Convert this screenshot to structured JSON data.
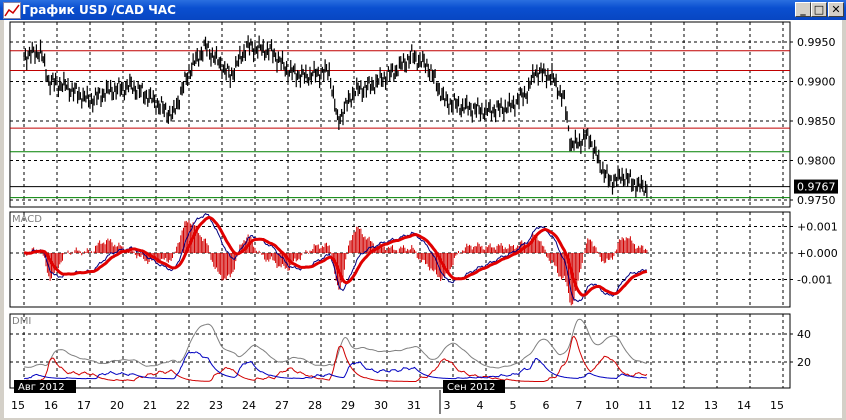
{
  "window": {
    "title": "График USD /CAD  ЧАС",
    "minimize_icon": "minimize-icon",
    "maximize_icon": "maximize-icon",
    "close_icon": "close-icon"
  },
  "colors": {
    "candles": "#000000",
    "resistance": "#c00000",
    "support": "#008000",
    "macd_signal": "#e00000",
    "macd_line": "#000080",
    "dmi_adx": "#808080",
    "dmi_plus": "#0000c0",
    "dmi_minus": "#d00000"
  },
  "chart_data": [
    {
      "type": "bar",
      "name": "price",
      "ylim": [
        0.9745,
        0.997
      ],
      "yticks": [
        "0.9950",
        "0.9900",
        "0.9850",
        "0.9800",
        "0.9750"
      ],
      "current_price": "0.9767",
      "horizontal_lines": [
        {
          "price": 0.9939,
          "color": "red"
        },
        {
          "price": 0.9914,
          "color": "red"
        },
        {
          "price": 0.9841,
          "color": "red"
        },
        {
          "price": 0.9811,
          "color": "green"
        },
        {
          "price": 0.9767,
          "color": "black"
        },
        {
          "price": 0.9753,
          "color": "green"
        }
      ],
      "trading_days": [
        "08-15",
        "08-16",
        "08-17",
        "08-20",
        "08-21",
        "08-22",
        "08-23",
        "08-24",
        "08-27",
        "08-28",
        "08-29",
        "08-30",
        "08-31",
        "09-03",
        "09-04",
        "09-05",
        "09-06",
        "09-07",
        "09-10",
        "09-11",
        "09-12",
        "09-13",
        "09-14",
        "09-15"
      ],
      "points": [
        [
          "08-15 00:00",
          0.9934
        ],
        [
          "08-15 12:00",
          0.994
        ],
        [
          "08-15 18:00",
          0.9902
        ],
        [
          "08-16 06:00",
          0.9896
        ],
        [
          "08-17 00:00",
          0.9877
        ],
        [
          "08-17 12:00",
          0.9889
        ],
        [
          "08-20 06:00",
          0.9896
        ],
        [
          "08-20 18:00",
          0.9883
        ],
        [
          "08-21 12:00",
          0.9858
        ],
        [
          "08-22 00:00",
          0.9915
        ],
        [
          "08-22 12:00",
          0.9946
        ],
        [
          "08-23 06:00",
          0.9908
        ],
        [
          "08-23 18:00",
          0.9946
        ],
        [
          "08-24 12:00",
          0.994
        ],
        [
          "08-27 00:00",
          0.9915
        ],
        [
          "08-27 12:00",
          0.9908
        ],
        [
          "08-28 06:00",
          0.9915
        ],
        [
          "08-28 12:00",
          0.9851
        ],
        [
          "08-29 00:00",
          0.9889
        ],
        [
          "08-29 12:00",
          0.9896
        ],
        [
          "08-30 06:00",
          0.9915
        ],
        [
          "08-30 18:00",
          0.9934
        ],
        [
          "08-31 06:00",
          0.9921
        ],
        [
          "08-31 18:00",
          0.9877
        ],
        [
          "09-03 06:00",
          0.987
        ],
        [
          "09-04 00:00",
          0.9864
        ],
        [
          "09-04 18:00",
          0.987
        ],
        [
          "09-05 06:00",
          0.9889
        ],
        [
          "09-05 12:00",
          0.9915
        ],
        [
          "09-06 00:00",
          0.9908
        ],
        [
          "09-06 09:00",
          0.9877
        ],
        [
          "09-06 14:00",
          0.982
        ],
        [
          "09-07 03:00",
          0.9832
        ],
        [
          "09-07 10:00",
          0.98
        ],
        [
          "09-07 18:00",
          0.9775
        ],
        [
          "09-10 04:00",
          0.9782
        ],
        [
          "09-10 15:00",
          0.9769
        ],
        [
          "09-10 21:00",
          0.9767
        ]
      ]
    },
    {
      "type": "line",
      "label": "MACD",
      "yticks": [
        "+0.001",
        "+0.000",
        "-0.001"
      ],
      "ylim": [
        -0.0016,
        0.0013
      ]
    },
    {
      "type": "line",
      "label": "DMI",
      "yticks": [
        "40",
        "20"
      ],
      "ylim": [
        0,
        55
      ]
    }
  ],
  "x_axis": {
    "day_labels": [
      "15",
      "16",
      "17",
      "20",
      "21",
      "22",
      "23",
      "24",
      "27",
      "28",
      "29",
      "30",
      "31",
      "3",
      "4",
      "5",
      "6",
      "7",
      "10",
      "11",
      "12",
      "13",
      "14",
      "15"
    ],
    "month_labels": [
      {
        "text": "Авг 2012",
        "day_index": 0
      },
      {
        "text": "Сен 2012",
        "day_index": 13
      }
    ]
  }
}
